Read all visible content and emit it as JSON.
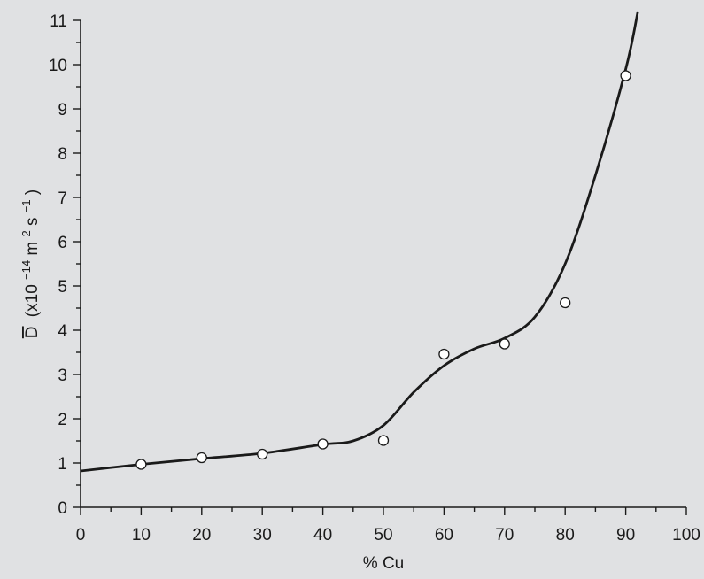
{
  "chart_data": {
    "type": "scatter",
    "xlabel": "% Cu",
    "ylabel": {
      "symbol": "D",
      "prefix": "(x10",
      "exponent1": "−14",
      "unit_m": " m",
      "exponent2": "2",
      "unit_s": "s",
      "exponent3": "−1",
      "suffix": ")"
    },
    "xlim": [
      0,
      100
    ],
    "ylim": [
      0,
      11
    ],
    "x_ticks": [
      0,
      10,
      20,
      30,
      40,
      50,
      60,
      70,
      80,
      90,
      100
    ],
    "y_ticks": [
      0,
      1,
      2,
      3,
      4,
      5,
      6,
      7,
      8,
      9,
      10,
      11
    ],
    "x_minor_step": 5,
    "y_minor_step": 0.5,
    "grid": false,
    "series": [
      {
        "kind": "points",
        "marker": "open-circle",
        "x": [
          10,
          20,
          30,
          40,
          50,
          60,
          70,
          80,
          90
        ],
        "y": [
          0.97,
          1.12,
          1.2,
          1.43,
          1.51,
          3.46,
          3.69,
          4.62,
          9.75
        ]
      },
      {
        "kind": "fitted-curve",
        "x": [
          0,
          10,
          20,
          30,
          40,
          45,
          50,
          55,
          60,
          65,
          70,
          75,
          80,
          85,
          90,
          92
        ],
        "y": [
          0.82,
          0.97,
          1.1,
          1.22,
          1.42,
          1.5,
          1.85,
          2.6,
          3.2,
          3.58,
          3.82,
          4.3,
          5.5,
          7.5,
          9.9,
          11.2
        ]
      }
    ]
  }
}
